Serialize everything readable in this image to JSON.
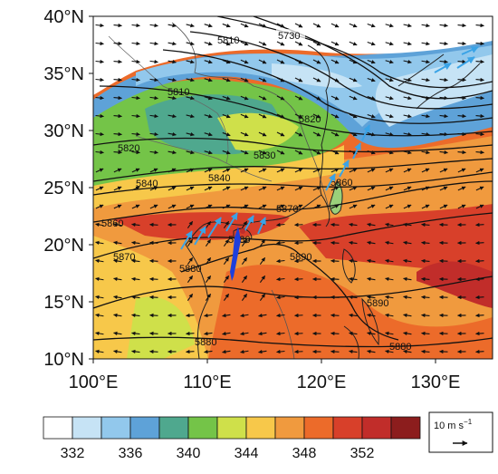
{
  "figure": {
    "lat_labels": [
      "40°N",
      "35°N",
      "30°N",
      "25°N",
      "20°N",
      "15°N",
      "10°N"
    ],
    "lon_labels": [
      "100°E",
      "110°E",
      "120°E",
      "130°E"
    ],
    "contour_labels": [
      "5730",
      "5810",
      "5810",
      "5820",
      "5820",
      "5830",
      "5840",
      "5840",
      "5860",
      "5860",
      "5870",
      "5880",
      "5870",
      "5890",
      "5890",
      "5880",
      "5880",
      "5880"
    ],
    "colorbar": {
      "tick_labels": [
        "332",
        "336",
        "340",
        "344",
        "348",
        "352"
      ],
      "colors": [
        "#ffffff",
        "#c6e3f5",
        "#92c8ec",
        "#5ea2d8",
        "#4fa88e",
        "#74c448",
        "#cfe04a",
        "#f7c84a",
        "#f09a3e",
        "#ec6b2a",
        "#d8402a",
        "#c12d2a",
        "#8c1d1d"
      ]
    },
    "reference_vector": {
      "label_prefix": "10 m s",
      "label_exponent": "−1"
    },
    "colors": {
      "wind_vector": "#111111",
      "strong_wind_vector": "#3aa3e6",
      "contour": "#111111",
      "coastline": "#222222",
      "marker": "#1e3fdc"
    }
  }
}
